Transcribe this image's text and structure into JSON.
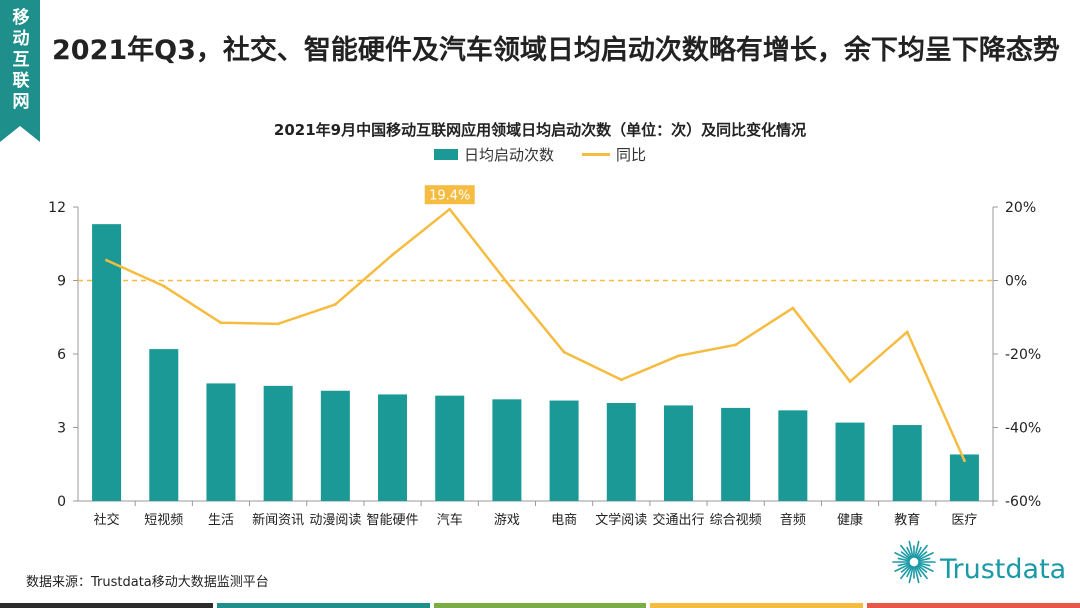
{
  "tag": "移动互联网",
  "headline": "2021年Q3，社交、智能硬件及汽车领域日均启动次数略有增长，余下均呈下降态势",
  "source": "数据来源：Trustdata移动大数据监测平台",
  "logo_text": "Trustdata",
  "colors": {
    "bar": "#1a9996",
    "line": "#f6bc41",
    "accent": "#1f8f8c"
  },
  "footer_colors": [
    "#2b2b2b",
    "#1f8f8c",
    "#7aae45",
    "#f6bc41",
    "#e8574a"
  ],
  "chart_data": {
    "type": "bar",
    "title": "2021年9月中国移动互联网应用领域日均启动次数（单位：次）及同比变化情况",
    "categories": [
      "社交",
      "短视频",
      "生活",
      "新闻资讯",
      "动漫阅读",
      "智能硬件",
      "汽车",
      "游戏",
      "电商",
      "文学阅读",
      "交通出行",
      "综合视频",
      "音频",
      "健康",
      "教育",
      "医疗"
    ],
    "series": [
      {
        "name": "日均启动次数",
        "type": "bar",
        "axis": "left",
        "values": [
          11.3,
          6.2,
          4.8,
          4.7,
          4.5,
          4.35,
          4.3,
          4.15,
          4.1,
          4.0,
          3.9,
          3.8,
          3.7,
          3.2,
          3.1,
          1.9
        ]
      },
      {
        "name": "同比",
        "type": "line",
        "axis": "right",
        "unit": "%",
        "values": [
          5.5,
          -1.5,
          -11.5,
          -11.8,
          -6.5,
          7.0,
          19.4,
          -0.5,
          -19.5,
          -27.0,
          -20.5,
          -17.5,
          -7.5,
          -27.5,
          -14.0,
          -49.0
        ]
      }
    ],
    "y_left": {
      "min": 0,
      "max": 12,
      "ticks": [
        "0",
        "3",
        "6",
        "9",
        "12"
      ]
    },
    "y_right": {
      "min": -60,
      "max": 20,
      "ticks": [
        "-60%",
        "-40%",
        "-20%",
        "0%",
        "20%"
      ]
    },
    "annotation": {
      "label": "19.4%",
      "category": "汽车",
      "series": "同比"
    },
    "reference_line": {
      "axis": "right",
      "value": 0,
      "style": "dashed"
    },
    "legend_position": "top-center",
    "grid": false
  }
}
